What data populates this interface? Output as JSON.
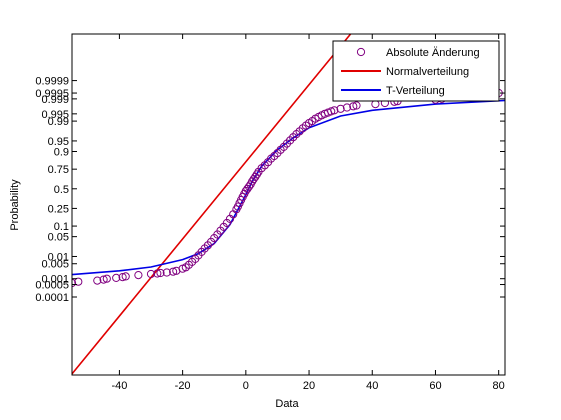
{
  "chart_data": {
    "type": "scatter",
    "title": "",
    "xlabel": "Data",
    "ylabel": "Probability",
    "xlim": [
      -55,
      82
    ],
    "x_ticks": [
      -40,
      -20,
      0,
      20,
      40,
      60,
      80
    ],
    "x_tick_labels": [
      "-40",
      "-20",
      "0",
      "20",
      "40",
      "60",
      "80"
    ],
    "y_scale": "normal-probability",
    "y_ticks": [
      0.0001,
      0.0005,
      0.001,
      0.005,
      0.01,
      0.05,
      0.1,
      0.25,
      0.5,
      0.75,
      0.9,
      0.95,
      0.99,
      0.995,
      0.999,
      0.9995,
      0.9999
    ],
    "y_tick_labels": [
      "0.0001",
      "0.0005",
      "0.001",
      "0.005",
      "0.01",
      "0.05",
      "0.1",
      "0.25",
      "0.5",
      "0.75",
      "0.9",
      "0.95",
      "0.99",
      "0.995",
      "0.999",
      "0.9995",
      "0.9999"
    ],
    "grid": false,
    "legend_position": "top-right",
    "series": [
      {
        "name": "Absolute Änderung",
        "kind": "markers",
        "color": "#800080",
        "x": [
          -55,
          -53,
          -47,
          -45,
          -44,
          -41,
          -39,
          -38,
          -34,
          -30,
          -28,
          -27,
          -25,
          -23,
          -22,
          -20,
          -19,
          -18,
          -17,
          -16,
          -15,
          -14,
          -13,
          -12,
          -11,
          -10,
          -9,
          -8,
          -7,
          -6,
          -5,
          -4,
          -3,
          -2.5,
          -2,
          -1.5,
          -1,
          -0.5,
          0,
          0.5,
          1,
          1.5,
          2,
          2.5,
          3,
          3.5,
          4,
          5,
          6,
          7,
          8,
          9,
          10,
          11,
          12,
          13,
          14,
          15,
          16,
          17,
          18,
          19,
          20,
          21,
          22,
          23,
          24,
          25,
          26,
          27,
          28,
          30,
          32,
          34,
          35,
          41,
          44,
          47,
          48,
          60,
          62,
          64,
          80
        ],
        "y": [
          0.0006,
          0.0007,
          0.0008,
          0.0009,
          0.001,
          0.0011,
          0.0012,
          0.0013,
          0.0015,
          0.0017,
          0.0018,
          0.0019,
          0.002,
          0.0022,
          0.0024,
          0.003,
          0.0035,
          0.0045,
          0.006,
          0.008,
          0.011,
          0.015,
          0.02,
          0.026,
          0.034,
          0.045,
          0.058,
          0.075,
          0.095,
          0.12,
          0.15,
          0.19,
          0.24,
          0.27,
          0.31,
          0.35,
          0.39,
          0.43,
          0.47,
          0.5,
          0.53,
          0.56,
          0.6,
          0.63,
          0.66,
          0.69,
          0.72,
          0.76,
          0.79,
          0.82,
          0.85,
          0.87,
          0.89,
          0.91,
          0.925,
          0.94,
          0.952,
          0.962,
          0.97,
          0.976,
          0.981,
          0.985,
          0.988,
          0.99,
          0.992,
          0.9932,
          0.9942,
          0.995,
          0.9956,
          0.9961,
          0.9965,
          0.997,
          0.9974,
          0.9977,
          0.9979,
          0.9982,
          0.9984,
          0.9986,
          0.9987,
          0.9989,
          0.999,
          0.9992,
          0.9995
        ]
      },
      {
        "name": "Normalverteilung",
        "kind": "line",
        "color": "#e00000",
        "x": [
          -55,
          41
        ],
        "y": [
          1e-10,
          0.9999999999
        ]
      },
      {
        "name": "T-Verteilung",
        "kind": "line",
        "color": "#0000e6",
        "x": [
          -55,
          -40,
          -30,
          -20,
          -15,
          -10,
          -5,
          -2,
          0,
          2,
          5,
          10,
          15,
          20,
          30,
          40,
          60,
          82
        ],
        "y": [
          0.0016,
          0.0024,
          0.0036,
          0.0075,
          0.013,
          0.03,
          0.11,
          0.27,
          0.42,
          0.6,
          0.78,
          0.91,
          0.96,
          0.982,
          0.9938,
          0.9965,
          0.9982,
          0.9988
        ]
      }
    ]
  }
}
